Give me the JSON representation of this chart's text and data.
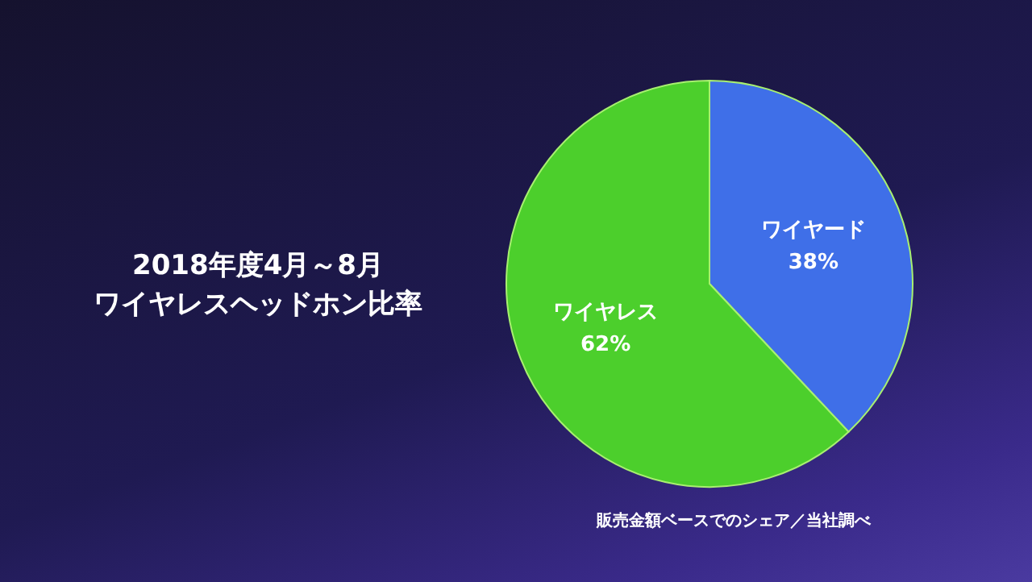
{
  "chart_data": {
    "type": "pie",
    "title": "2018年度4月～8月",
    "subtitle": "ワイヤレスヘッドホン比率",
    "categories": [
      "ワイヤード",
      "ワイヤレス"
    ],
    "values": [
      38,
      62
    ],
    "colors": [
      "#3f6fe8",
      "#4ccf2c"
    ],
    "value_labels": [
      "38%",
      "62%"
    ],
    "legend": false,
    "annotations": [
      "販売金額ベースでのシェア／当社調べ"
    ]
  }
}
